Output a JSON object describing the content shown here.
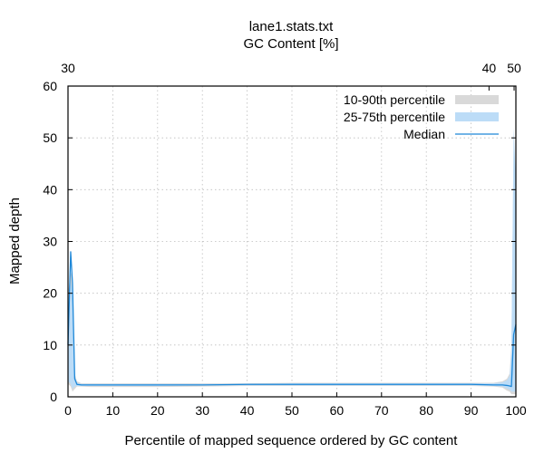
{
  "chart_data": {
    "type": "area",
    "title_lines": [
      "lane1.stats.txt",
      "GC Content [%]"
    ],
    "xlabel": "Percentile of mapped sequence ordered by GC content",
    "ylabel": "Mapped depth",
    "xlim": [
      0,
      100
    ],
    "ylim": [
      0,
      60
    ],
    "xticks": [
      0,
      10,
      20,
      30,
      40,
      50,
      60,
      70,
      80,
      90,
      100
    ],
    "yticks": [
      0,
      10,
      20,
      30,
      40,
      50,
      60
    ],
    "top_axis": {
      "labels": [
        {
          "text": "30",
          "x": 0
        },
        {
          "text": "40",
          "x": 94
        },
        {
          "text": "50",
          "x": 99.6
        }
      ]
    },
    "grid": true,
    "legend_position": "top-right",
    "legend": [
      {
        "label": "10-90th percentile",
        "color": "#d9d9d9",
        "kind": "band"
      },
      {
        "label": "25-75th percentile",
        "color": "#bcdcf7",
        "kind": "band"
      },
      {
        "label": "Median",
        "color": "#1f88d8",
        "kind": "line"
      }
    ],
    "x": [
      0,
      0.6,
      1,
      1.5,
      2,
      3,
      5,
      10,
      20,
      30,
      40,
      50,
      60,
      70,
      80,
      90,
      95,
      97,
      98,
      98.6,
      99,
      99.5,
      100
    ],
    "series": [
      {
        "name": "10-90th percentile",
        "lower": [
          2.5,
          2,
          1,
          1.5,
          2.0,
          2.0,
          1.9,
          1.9,
          1.9,
          2.0,
          2.1,
          2.1,
          2.1,
          2.1,
          2.1,
          2.1,
          2.0,
          1.8,
          1.2,
          1.0,
          0.5,
          0.5,
          0.5
        ],
        "upper": [
          20,
          24,
          23,
          4.5,
          3.0,
          2.6,
          2.6,
          2.6,
          2.6,
          2.6,
          2.6,
          2.7,
          2.7,
          2.7,
          2.7,
          2.7,
          2.7,
          3.0,
          3.5,
          4.5,
          10,
          48,
          36
        ]
      },
      {
        "name": "25-75th percentile",
        "lower": [
          3,
          2.5,
          1.5,
          2.0,
          2.1,
          2.1,
          2.1,
          2.1,
          2.1,
          2.2,
          2.2,
          2.2,
          2.2,
          2.2,
          2.2,
          2.2,
          2.1,
          2.0,
          1.6,
          1.4,
          1.0,
          1.0,
          1.0
        ],
        "upper": [
          18,
          22,
          20,
          4.0,
          2.7,
          2.5,
          2.5,
          2.5,
          2.5,
          2.5,
          2.5,
          2.6,
          2.6,
          2.6,
          2.6,
          2.6,
          2.6,
          2.8,
          3.2,
          4.0,
          9,
          52,
          42
        ]
      },
      {
        "name": "Median",
        "values": [
          10,
          28,
          22,
          3.5,
          2.4,
          2.3,
          2.3,
          2.3,
          2.3,
          2.3,
          2.4,
          2.4,
          2.4,
          2.4,
          2.4,
          2.4,
          2.3,
          2.3,
          2.2,
          2.1,
          2.0,
          12,
          14
        ]
      }
    ]
  }
}
